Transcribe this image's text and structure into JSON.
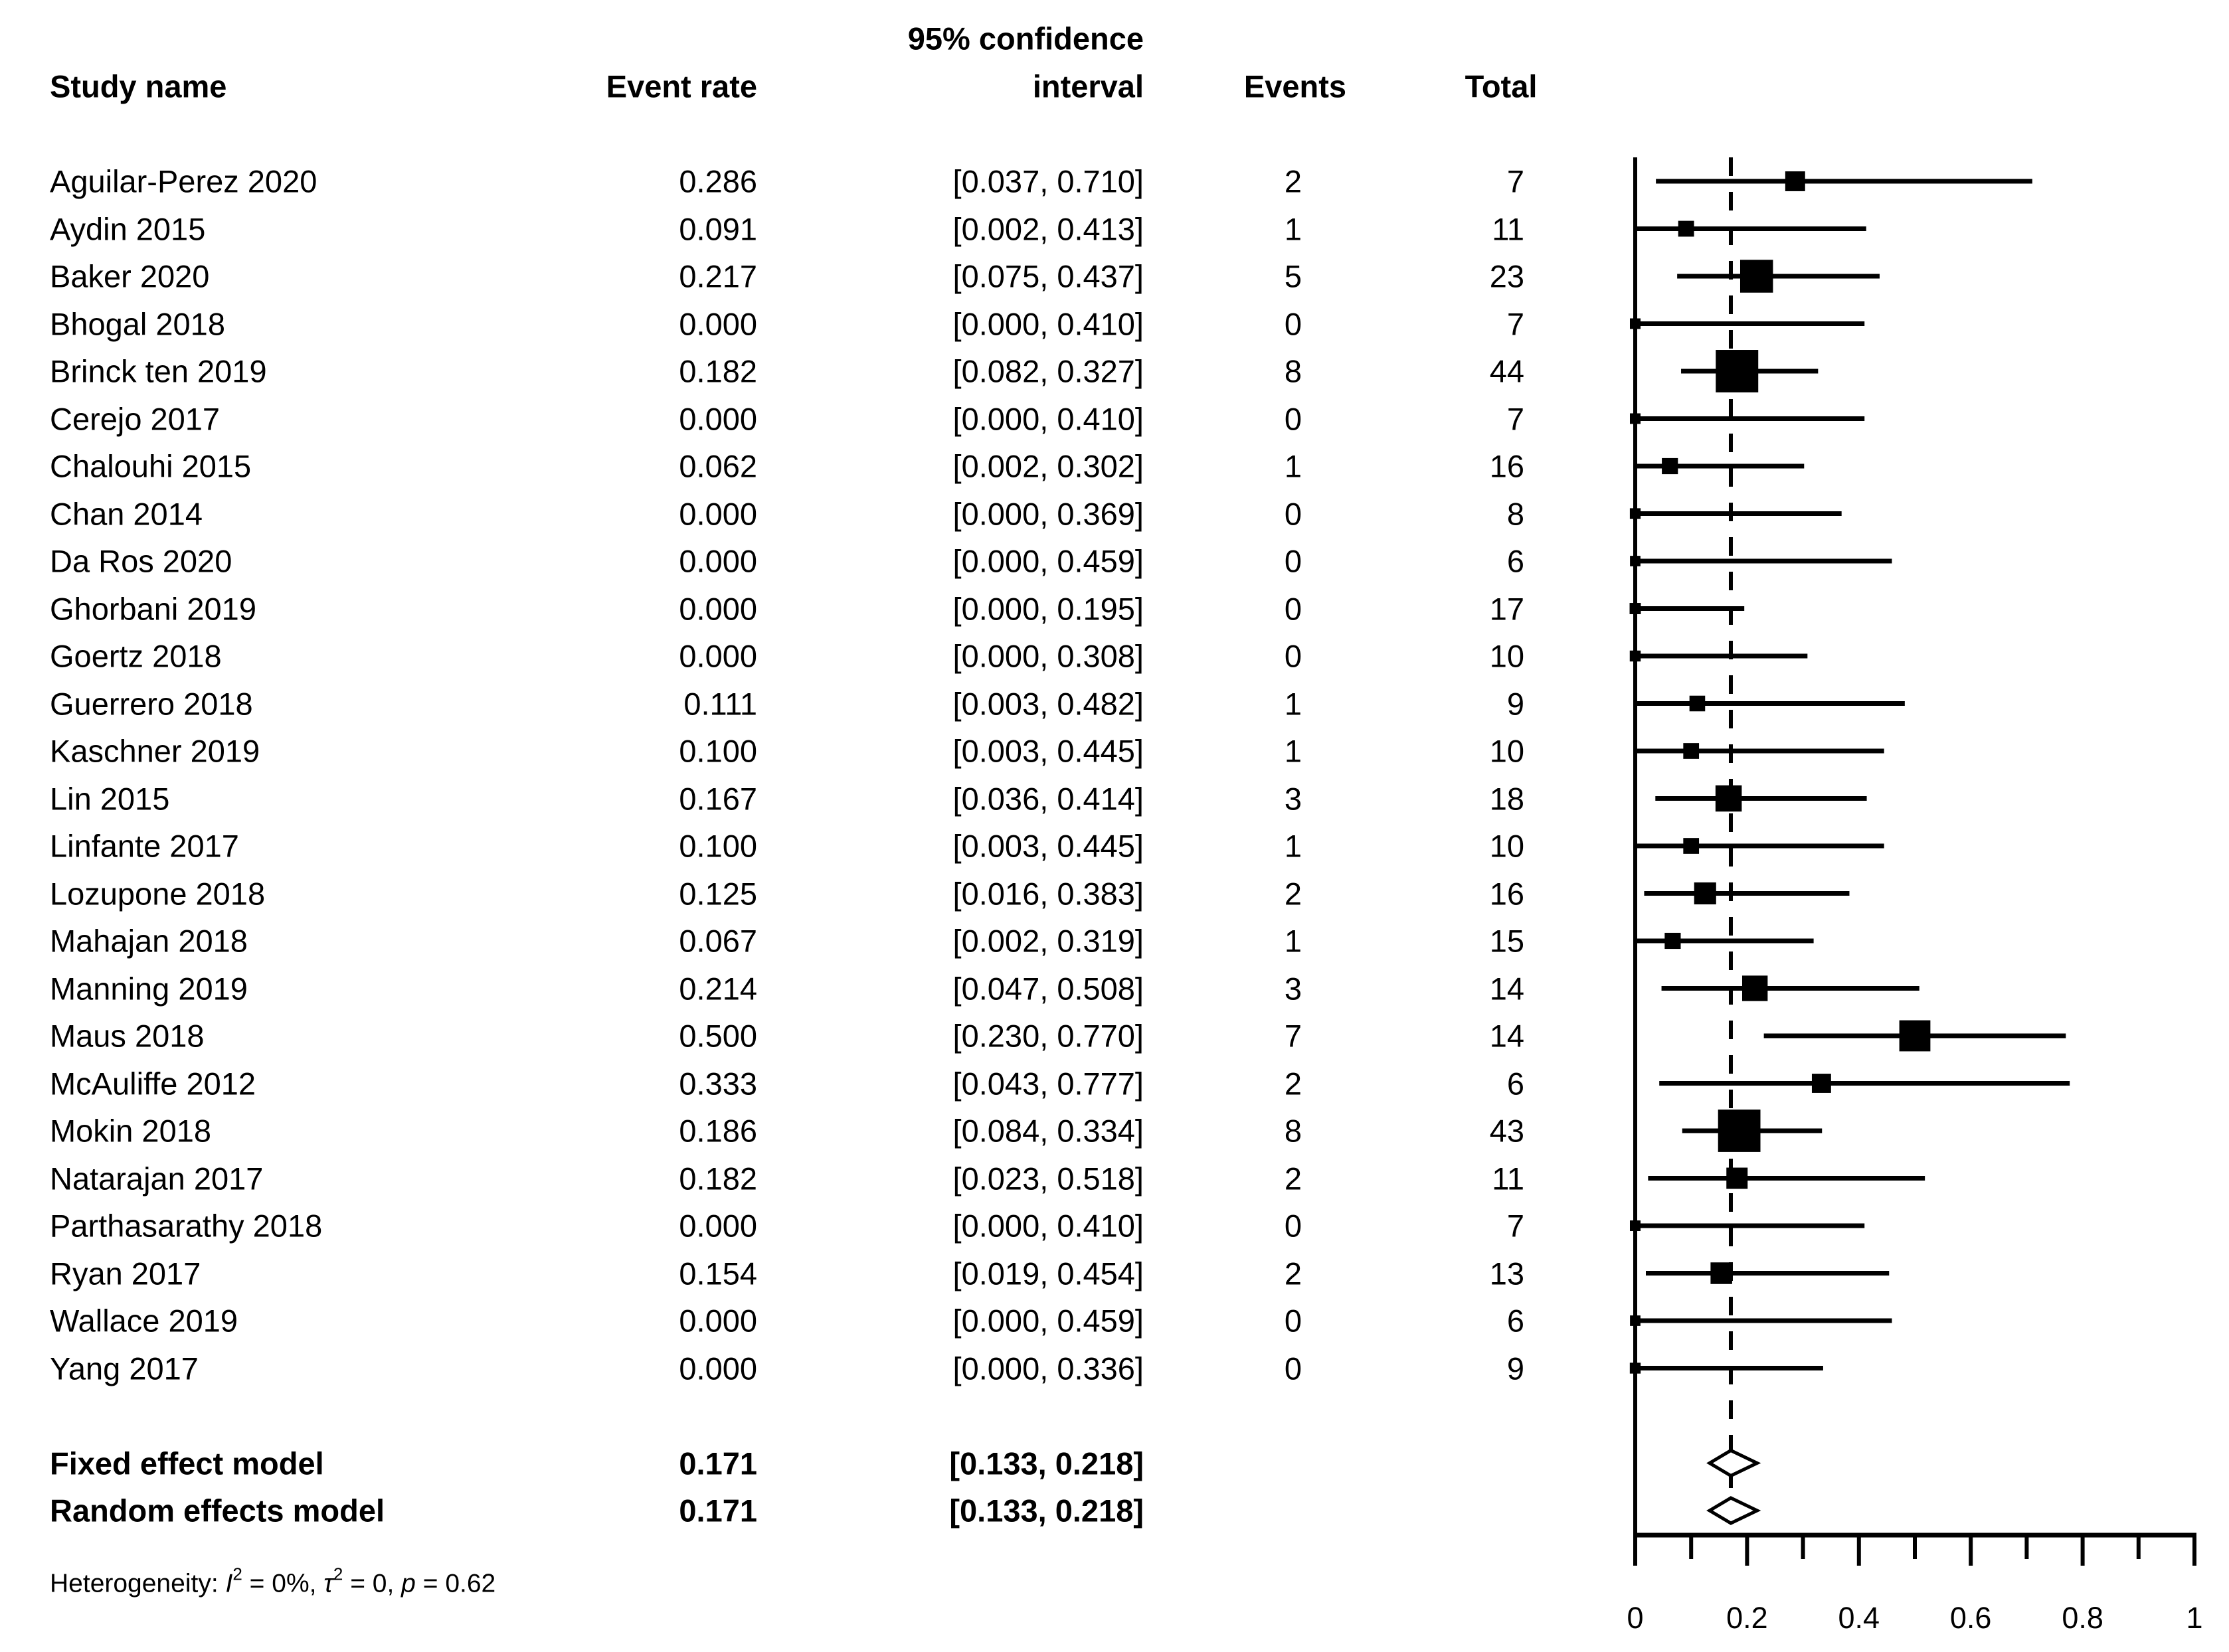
{
  "figure": {
    "columns": {
      "study": "Study name",
      "event_rate": "Event rate",
      "ci_line1": "95% confidence",
      "ci_line2": "interval",
      "events": "Events",
      "total": "Total"
    }
  },
  "chart_data": {
    "type": "forest",
    "x_axis": {
      "xlim": [
        0,
        1
      ],
      "labeled_ticks": [
        0,
        0.2,
        0.4,
        0.6,
        0.8,
        1
      ],
      "tick_labels": [
        "0",
        "0.2",
        "0.4",
        "0.6",
        "0.8",
        "1"
      ],
      "minor_ticks": [
        0.1,
        0.3,
        0.5,
        0.7,
        0.9
      ]
    },
    "pooled_dashed_line": 0.171,
    "studies": [
      {
        "name": "Aguilar-Perez 2020",
        "event_rate": 0.286,
        "rate_label": "0.286",
        "ci": [
          0.037,
          0.71
        ],
        "ci_label": "[0.037, 0.710]",
        "events": 2,
        "total": 7
      },
      {
        "name": "Aydin 2015",
        "event_rate": 0.091,
        "rate_label": "0.091",
        "ci": [
          0.002,
          0.413
        ],
        "ci_label": "[0.002, 0.413]",
        "events": 1,
        "total": 11
      },
      {
        "name": "Baker 2020",
        "event_rate": 0.217,
        "rate_label": "0.217",
        "ci": [
          0.075,
          0.437
        ],
        "ci_label": "[0.075, 0.437]",
        "events": 5,
        "total": 23
      },
      {
        "name": "Bhogal 2018",
        "event_rate": 0.0,
        "rate_label": "0.000",
        "ci": [
          0.0,
          0.41
        ],
        "ci_label": "[0.000, 0.410]",
        "events": 0,
        "total": 7
      },
      {
        "name": "Brinck ten 2019",
        "event_rate": 0.182,
        "rate_label": "0.182",
        "ci": [
          0.082,
          0.327
        ],
        "ci_label": "[0.082, 0.327]",
        "events": 8,
        "total": 44
      },
      {
        "name": "Cerejo 2017",
        "event_rate": 0.0,
        "rate_label": "0.000",
        "ci": [
          0.0,
          0.41
        ],
        "ci_label": "[0.000, 0.410]",
        "events": 0,
        "total": 7
      },
      {
        "name": "Chalouhi 2015",
        "event_rate": 0.062,
        "rate_label": "0.062",
        "ci": [
          0.002,
          0.302
        ],
        "ci_label": "[0.002, 0.302]",
        "events": 1,
        "total": 16
      },
      {
        "name": "Chan 2014",
        "event_rate": 0.0,
        "rate_label": "0.000",
        "ci": [
          0.0,
          0.369
        ],
        "ci_label": "[0.000, 0.369]",
        "events": 0,
        "total": 8
      },
      {
        "name": "Da Ros 2020",
        "event_rate": 0.0,
        "rate_label": "0.000",
        "ci": [
          0.0,
          0.459
        ],
        "ci_label": "[0.000, 0.459]",
        "events": 0,
        "total": 6
      },
      {
        "name": "Ghorbani 2019",
        "event_rate": 0.0,
        "rate_label": "0.000",
        "ci": [
          0.0,
          0.195
        ],
        "ci_label": "[0.000, 0.195]",
        "events": 0,
        "total": 17
      },
      {
        "name": "Goertz 2018",
        "event_rate": 0.0,
        "rate_label": "0.000",
        "ci": [
          0.0,
          0.308
        ],
        "ci_label": "[0.000, 0.308]",
        "events": 0,
        "total": 10
      },
      {
        "name": "Guerrero 2018",
        "event_rate": 0.111,
        "rate_label": "0.111",
        "ci": [
          0.003,
          0.482
        ],
        "ci_label": "[0.003, 0.482]",
        "events": 1,
        "total": 9
      },
      {
        "name": "Kaschner 2019",
        "event_rate": 0.1,
        "rate_label": "0.100",
        "ci": [
          0.003,
          0.445
        ],
        "ci_label": "[0.003, 0.445]",
        "events": 1,
        "total": 10
      },
      {
        "name": "Lin 2015",
        "event_rate": 0.167,
        "rate_label": "0.167",
        "ci": [
          0.036,
          0.414
        ],
        "ci_label": "[0.036, 0.414]",
        "events": 3,
        "total": 18
      },
      {
        "name": "Linfante 2017",
        "event_rate": 0.1,
        "rate_label": "0.100",
        "ci": [
          0.003,
          0.445
        ],
        "ci_label": "[0.003, 0.445]",
        "events": 1,
        "total": 10
      },
      {
        "name": "Lozupone 2018",
        "event_rate": 0.125,
        "rate_label": "0.125",
        "ci": [
          0.016,
          0.383
        ],
        "ci_label": "[0.016, 0.383]",
        "events": 2,
        "total": 16
      },
      {
        "name": "Mahajan 2018",
        "event_rate": 0.067,
        "rate_label": "0.067",
        "ci": [
          0.002,
          0.319
        ],
        "ci_label": "[0.002, 0.319]",
        "events": 1,
        "total": 15
      },
      {
        "name": "Manning 2019",
        "event_rate": 0.214,
        "rate_label": "0.214",
        "ci": [
          0.047,
          0.508
        ],
        "ci_label": "[0.047, 0.508]",
        "events": 3,
        "total": 14
      },
      {
        "name": "Maus 2018",
        "event_rate": 0.5,
        "rate_label": "0.500",
        "ci": [
          0.23,
          0.77
        ],
        "ci_label": "[0.230, 0.770]",
        "events": 7,
        "total": 14
      },
      {
        "name": "McAuliffe 2012",
        "event_rate": 0.333,
        "rate_label": "0.333",
        "ci": [
          0.043,
          0.777
        ],
        "ci_label": "[0.043, 0.777]",
        "events": 2,
        "total": 6
      },
      {
        "name": "Mokin 2018",
        "event_rate": 0.186,
        "rate_label": "0.186",
        "ci": [
          0.084,
          0.334
        ],
        "ci_label": "[0.084, 0.334]",
        "events": 8,
        "total": 43
      },
      {
        "name": "Natarajan 2017",
        "event_rate": 0.182,
        "rate_label": "0.182",
        "ci": [
          0.023,
          0.518
        ],
        "ci_label": "[0.023, 0.518]",
        "events": 2,
        "total": 11
      },
      {
        "name": "Parthasarathy 2018",
        "event_rate": 0.0,
        "rate_label": "0.000",
        "ci": [
          0.0,
          0.41
        ],
        "ci_label": "[0.000, 0.410]",
        "events": 0,
        "total": 7
      },
      {
        "name": "Ryan 2017",
        "event_rate": 0.154,
        "rate_label": "0.154",
        "ci": [
          0.019,
          0.454
        ],
        "ci_label": "[0.019, 0.454]",
        "events": 2,
        "total": 13
      },
      {
        "name": "Wallace 2019",
        "event_rate": 0.0,
        "rate_label": "0.000",
        "ci": [
          0.0,
          0.459
        ],
        "ci_label": "[0.000, 0.459]",
        "events": 0,
        "total": 6
      },
      {
        "name": "Yang 2017",
        "event_rate": 0.0,
        "rate_label": "0.000",
        "ci": [
          0.0,
          0.336
        ],
        "ci_label": "[0.000, 0.336]",
        "events": 0,
        "total": 9
      }
    ],
    "summaries": [
      {
        "label": "Fixed effect model",
        "event_rate": 0.171,
        "rate_label": "0.171",
        "ci": [
          0.133,
          0.218
        ],
        "ci_label": "[0.133, 0.218]"
      },
      {
        "label": "Random effects model",
        "event_rate": 0.171,
        "rate_label": "0.171",
        "ci": [
          0.133,
          0.218
        ],
        "ci_label": "[0.133, 0.218]"
      }
    ],
    "heterogeneity": {
      "text": "Heterogeneity: I² = 0%, τ² = 0, p = 0.62",
      "segments": [
        {
          "text": "Heterogeneity: "
        },
        {
          "text": "I",
          "italic": true
        },
        {
          "text": "2",
          "sup": true
        },
        {
          "text": " = 0%, "
        },
        {
          "text": "τ",
          "italic": true
        },
        {
          "text": "2",
          "sup": true
        },
        {
          "text": " = 0, "
        },
        {
          "text": "p",
          "italic": true
        },
        {
          "text": " = 0.62"
        }
      ]
    },
    "colors": {
      "foreground": "#000000",
      "background": "#ffffff"
    }
  }
}
